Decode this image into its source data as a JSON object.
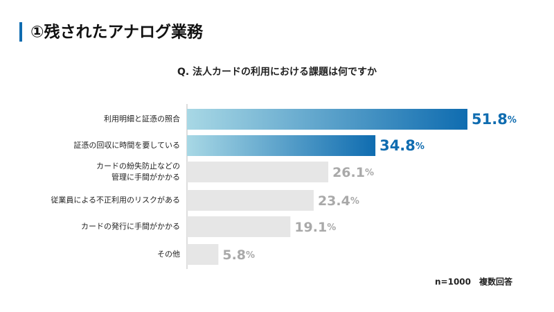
{
  "chart_data": {
    "type": "bar",
    "orientation": "horizontal",
    "heading": "①残されたアナログ業務",
    "title": "Q. 法人カードの利用における課題は何ですか",
    "categories": [
      "利用明細と証憑の照合",
      "証憑の回収に時間を要している",
      "カードの紛失防止などの\n管理に手間がかかる",
      "従業員による不正利用のリスクがある",
      "カードの発行に手間がかかる",
      "その他"
    ],
    "values": [
      51.8,
      34.8,
      26.1,
      23.4,
      19.1,
      5.8
    ],
    "unit": "%",
    "highlighted": [
      true,
      true,
      false,
      false,
      false,
      false
    ],
    "accent": "#0f6cb0",
    "accent_light": "#a8d8e5",
    "muted": "#e6e6e6",
    "muted_label": "#a9a9a9",
    "xlim": [
      0,
      51.8
    ],
    "note": "n=1000　複数回答"
  }
}
